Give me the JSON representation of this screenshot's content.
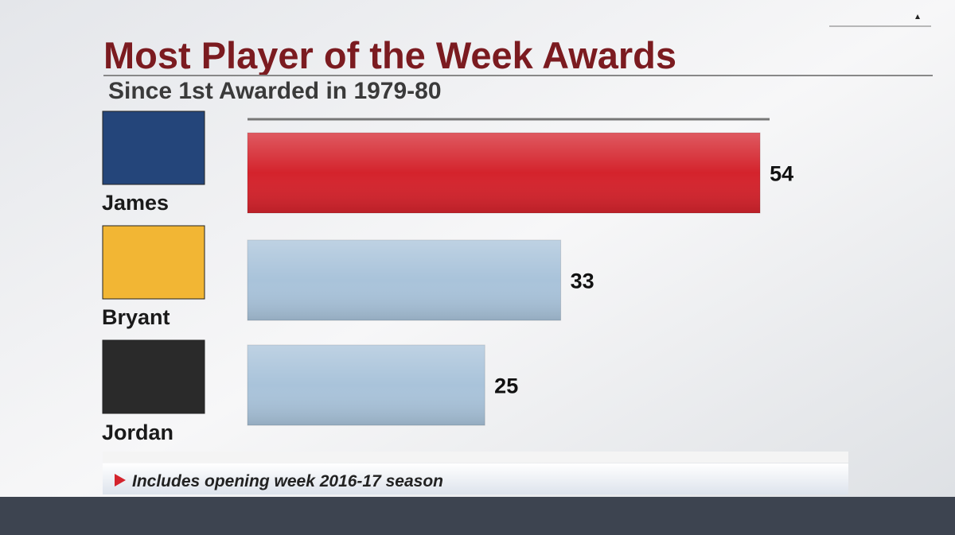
{
  "chart_data": {
    "type": "bar",
    "orientation": "horizontal",
    "title": "Most Player of the Week Awards",
    "subtitle": "Since 1st Awarded in 1979-80",
    "categories": [
      "James",
      "Bryant",
      "Jordan"
    ],
    "values": [
      54,
      33,
      25
    ],
    "colors": [
      "#d4232c",
      "#a9c3da",
      "#a9c3da"
    ],
    "xlim": [
      0,
      55
    ],
    "note": "Includes opening week 2016-17 season"
  }
}
